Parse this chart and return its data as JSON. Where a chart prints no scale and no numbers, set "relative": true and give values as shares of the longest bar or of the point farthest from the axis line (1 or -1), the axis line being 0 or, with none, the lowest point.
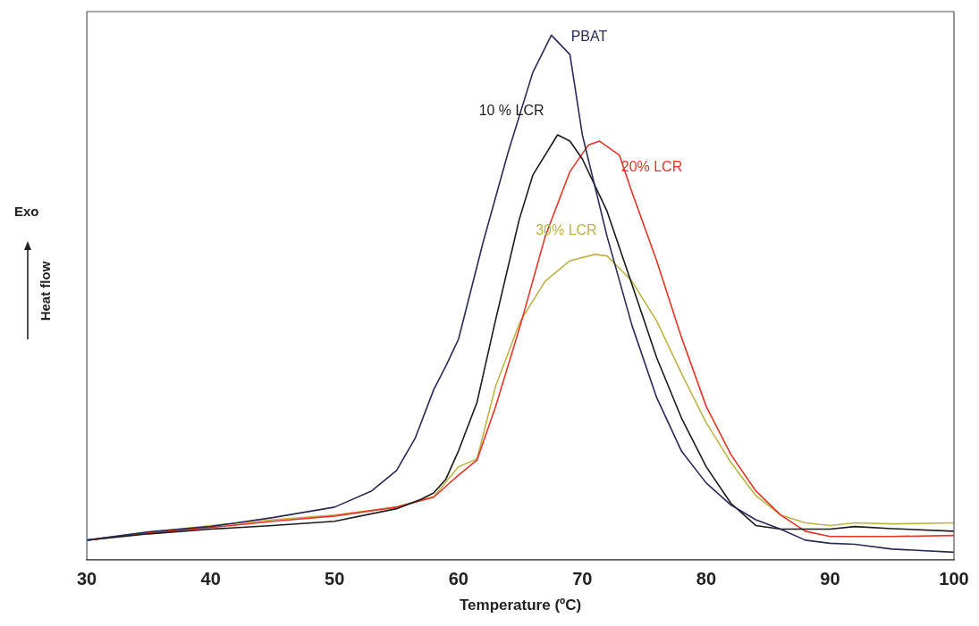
{
  "chart_data": {
    "type": "line",
    "relative": true,
    "xlabel": "Temperature (ºC)",
    "ylabel": "Heat flow",
    "annotations": [
      "Exo"
    ],
    "xlim": [
      30,
      100
    ],
    "xticks": [
      30,
      40,
      50,
      60,
      70,
      80,
      90,
      100
    ],
    "grid": false,
    "legend": false,
    "marker": "none",
    "line_style": "solid",
    "series": [
      {
        "name": "PBAT",
        "color": "#2a2a55",
        "x": [
          30,
          35,
          40,
          45,
          50,
          53,
          55,
          56.5,
          58,
          59,
          60,
          62,
          64,
          66,
          67.5,
          69,
          70,
          72,
          74,
          76,
          78,
          80,
          82,
          84,
          86,
          88,
          90,
          92,
          95,
          100
        ],
        "values": [
          0.037,
          0.053,
          0.063,
          0.08,
          0.1,
          0.131,
          0.17,
          0.231,
          0.324,
          0.37,
          0.42,
          0.606,
          0.776,
          0.929,
          1,
          0.963,
          0.81,
          0.616,
          0.447,
          0.309,
          0.207,
          0.146,
          0.104,
          0.076,
          0.058,
          0.037,
          0.031,
          0.029,
          0.02,
          0.014
        ]
      },
      {
        "name": "10 % LCR",
        "color": "#1a1a1a",
        "x": [
          30,
          35,
          40,
          45,
          50,
          55,
          57,
          58,
          59,
          60,
          61.5,
          62.9,
          64.9,
          66,
          68,
          69,
          70,
          72,
          74,
          76,
          78,
          80,
          82,
          84,
          86,
          90,
          92,
          95,
          100
        ],
        "values": [
          0.037,
          0.049,
          0.058,
          0.065,
          0.073,
          0.097,
          0.115,
          0.127,
          0.154,
          0.207,
          0.3,
          0.447,
          0.648,
          0.733,
          0.81,
          0.798,
          0.764,
          0.664,
          0.525,
          0.385,
          0.27,
          0.177,
          0.107,
          0.065,
          0.058,
          0.058,
          0.063,
          0.059,
          0.054
        ]
      },
      {
        "name": "20% LCR",
        "color": "#e8322a",
        "x": [
          30,
          35,
          40,
          45,
          50,
          55,
          58,
          60,
          61.5,
          63,
          65,
          67,
          69,
          70.5,
          71.4,
          73,
          74,
          76,
          78,
          80,
          82,
          84,
          86,
          88,
          90,
          95,
          100
        ],
        "values": [
          0.037,
          0.051,
          0.061,
          0.073,
          0.083,
          0.1,
          0.119,
          0.161,
          0.19,
          0.292,
          0.447,
          0.616,
          0.74,
          0.791,
          0.798,
          0.771,
          0.701,
          0.57,
          0.424,
          0.292,
          0.2,
          0.131,
          0.085,
          0.054,
          0.044,
          0.044,
          0.046
        ]
      },
      {
        "name": "30% LCR",
        "color": "#bdb447",
        "x": [
          30,
          35,
          40,
          45,
          50,
          55,
          58,
          60,
          61.5,
          63,
          65,
          67,
          69,
          71,
          72,
          74,
          76,
          78,
          80,
          82,
          84,
          86,
          88,
          90,
          92,
          95,
          100
        ],
        "values": [
          0.037,
          0.052,
          0.065,
          0.076,
          0.085,
          0.1,
          0.12,
          0.177,
          0.192,
          0.331,
          0.455,
          0.531,
          0.57,
          0.582,
          0.579,
          0.531,
          0.455,
          0.355,
          0.261,
          0.185,
          0.122,
          0.085,
          0.07,
          0.065,
          0.07,
          0.068,
          0.07
        ]
      }
    ]
  }
}
